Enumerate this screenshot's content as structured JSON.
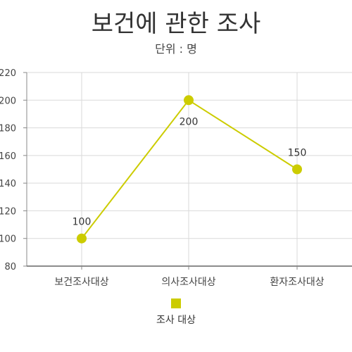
{
  "chart_data": {
    "type": "line",
    "title": "보건에 관한 조사",
    "subtitle": "단위 : 명",
    "categories": [
      "보건조사대상",
      "의사조사대상",
      "환자조사대상"
    ],
    "series": [
      {
        "name": "조사 대상",
        "values": [
          100,
          200,
          150
        ],
        "color": "#cccc00"
      }
    ],
    "ylim": [
      80,
      220
    ],
    "yticks": [
      80,
      100,
      120,
      140,
      160,
      180,
      200,
      220
    ],
    "grid": true,
    "legend_position": "bottom-center",
    "data_labels": [
      "100",
      "200",
      "150"
    ]
  }
}
